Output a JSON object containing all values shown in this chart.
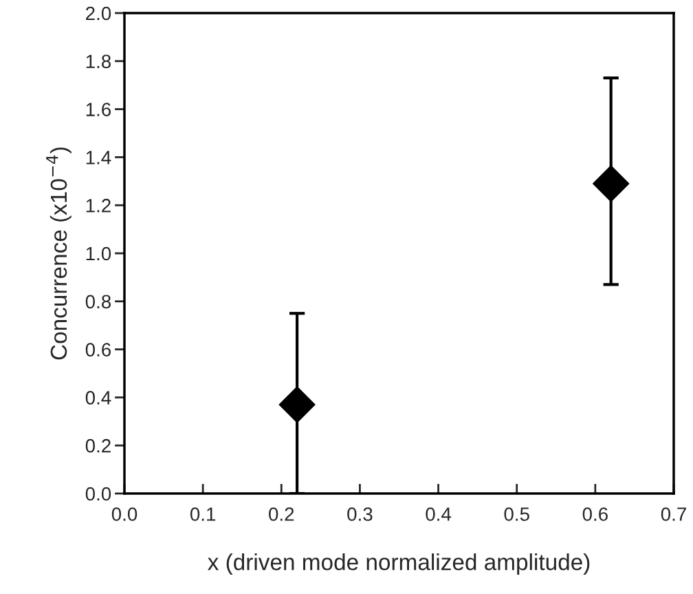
{
  "chart_data": {
    "type": "scatter",
    "xlabel": "x (driven mode normalized amplitude)",
    "ylabel": "Concurrence (x10$^{−4}$)",
    "x": [
      0.22,
      0.62
    ],
    "values": [
      0.37,
      1.29
    ],
    "errors": [
      [
        0.0,
        0.75
      ],
      [
        0.87,
        1.73
      ]
    ],
    "color": "#000000",
    "marker": "diamond",
    "grid": false,
    "xlim": [
      0.0,
      0.7
    ],
    "xticks": [
      {
        "value": 0,
        "label": "0.0"
      },
      0.1,
      0.2,
      0.3,
      0.4,
      0.5,
      0.6,
      0.7
    ],
    "ylim": [
      0.0,
      2.0
    ],
    "yticks": [
      {
        "value": 0,
        "label": "0.0"
      },
      0.2,
      0.4,
      0.6,
      0.8,
      {
        "value": 1,
        "label": "1.0"
      },
      1.2,
      1.4,
      1.6,
      1.8,
      {
        "value": 2,
        "label": "2.0"
      }
    ]
  }
}
